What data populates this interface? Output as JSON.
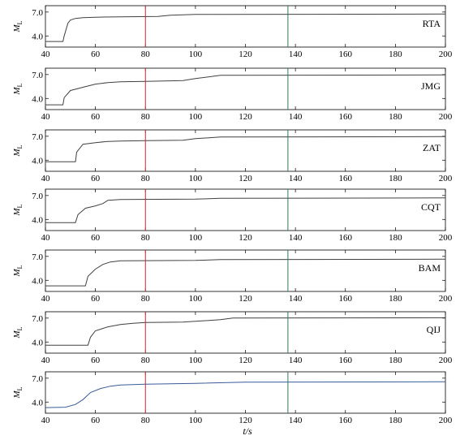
{
  "chart_data": {
    "type": "line",
    "xlabel": "t/s",
    "xlim": [
      40,
      200
    ],
    "ylim": [
      2.6,
      7.8
    ],
    "x_ticks": [
      40,
      60,
      80,
      100,
      120,
      140,
      160,
      180,
      200
    ],
    "y_ticks": [
      4.0,
      7.0
    ],
    "y_tick_labels": [
      "4.0",
      "7.0"
    ],
    "ylabel_main": "M",
    "ylabel_sub": "L",
    "vertical_lines": [
      {
        "x": 80,
        "color": "#c0282d"
      },
      {
        "x": 137,
        "color": "#2e7d5b"
      }
    ],
    "panels": [
      {
        "label": "RTA",
        "line_color": "#404040",
        "x": [
          40,
          47,
          47.5,
          49,
          50,
          52,
          55,
          60,
          70,
          85,
          90,
          100,
          200
        ],
        "y": [
          3.3,
          3.3,
          4.0,
          5.6,
          6.0,
          6.2,
          6.3,
          6.35,
          6.4,
          6.45,
          6.6,
          6.7,
          6.75
        ]
      },
      {
        "label": "JMG",
        "line_color": "#404040",
        "x": [
          40,
          47,
          47.5,
          50,
          55,
          60,
          65,
          70,
          80,
          95,
          100,
          110,
          200
        ],
        "y": [
          3.2,
          3.2,
          4.1,
          5.0,
          5.4,
          5.8,
          6.0,
          6.1,
          6.15,
          6.25,
          6.5,
          6.9,
          6.95
        ]
      },
      {
        "label": "ZAT",
        "line_color": "#404040",
        "x": [
          40,
          52,
          52.5,
          55,
          60,
          65,
          70,
          80,
          95,
          100,
          110,
          200
        ],
        "y": [
          3.8,
          3.8,
          5.0,
          6.0,
          6.2,
          6.35,
          6.4,
          6.45,
          6.5,
          6.7,
          6.9,
          6.95
        ]
      },
      {
        "label": "CQT",
        "line_color": "#404040",
        "x": [
          40,
          52,
          53,
          56,
          60,
          63,
          65,
          70,
          100,
          110,
          200
        ],
        "y": [
          3.6,
          3.6,
          4.6,
          5.4,
          5.7,
          6.0,
          6.4,
          6.5,
          6.55,
          6.65,
          6.7
        ]
      },
      {
        "label": "BAM",
        "line_color": "#404040",
        "x": [
          40,
          56,
          57,
          60,
          63,
          66,
          70,
          100,
          110,
          200
        ],
        "y": [
          3.3,
          3.3,
          4.5,
          5.4,
          6.0,
          6.3,
          6.45,
          6.5,
          6.6,
          6.65
        ]
      },
      {
        "label": "QIJ",
        "line_color": "#404040",
        "x": [
          40,
          57,
          58,
          60,
          65,
          70,
          75,
          80,
          95,
          100,
          110,
          115,
          200
        ],
        "y": [
          3.6,
          3.6,
          4.6,
          5.4,
          5.9,
          6.2,
          6.35,
          6.45,
          6.5,
          6.6,
          6.8,
          7.0,
          7.05
        ]
      },
      {
        "label": "",
        "line_color": "#3a5a9a",
        "x": [
          40,
          48,
          52,
          55,
          58,
          62,
          66,
          70,
          80,
          100,
          120,
          200
        ],
        "y": [
          3.3,
          3.35,
          3.7,
          4.3,
          5.2,
          5.7,
          6.0,
          6.15,
          6.25,
          6.35,
          6.5,
          6.55
        ]
      }
    ]
  }
}
